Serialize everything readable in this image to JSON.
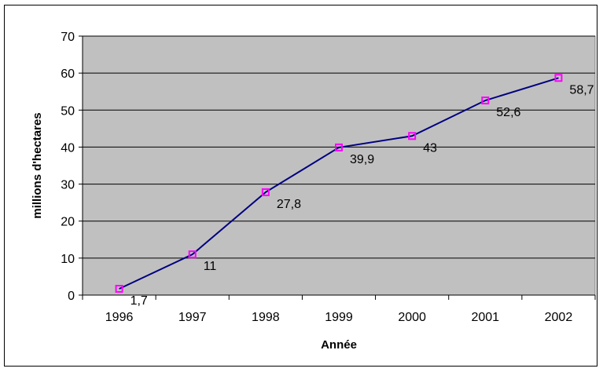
{
  "chart_data": {
    "type": "line",
    "title": "",
    "xlabel": "Année",
    "ylabel": "millions d'hectares",
    "categories": [
      "1996",
      "1997",
      "1998",
      "1999",
      "2000",
      "2001",
      "2002"
    ],
    "series": [
      {
        "values": [
          1.7,
          11,
          27.8,
          39.9,
          43,
          52.6,
          58.7
        ],
        "data_labels": [
          "1,7",
          "11",
          "27,8",
          "39,9",
          "43",
          "52,6",
          "58,7"
        ],
        "line_color": "#000080",
        "marker_color": "#ff00ff"
      }
    ],
    "ylim": [
      0,
      70
    ],
    "yticks": [
      0,
      10,
      20,
      30,
      40,
      50,
      60,
      70
    ],
    "ytick_labels": [
      "0",
      "10",
      "20",
      "30",
      "40",
      "50",
      "60",
      "70"
    ],
    "grid": true,
    "legend": "none",
    "plot_background": "#c0c0c0"
  }
}
